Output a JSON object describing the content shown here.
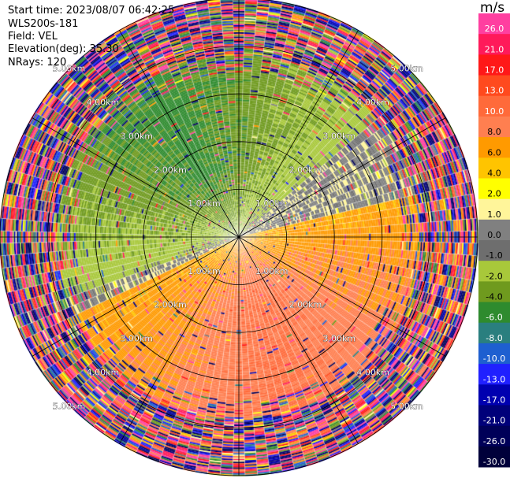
{
  "header": {
    "start_time": "Start time: 2023/08/07 06:42:25",
    "instrument": "WLS200s-181",
    "field": "Field: VEL",
    "elevation": "Elevation(deg): 35.30",
    "nrays": "NRays: 120"
  },
  "colorbar": {
    "unit": "m/s",
    "ticks": [
      "26.0",
      "21.0",
      "17.0",
      "13.0",
      "10.0",
      "8.0",
      "6.0",
      "4.0",
      "2.0",
      "1.0",
      "0.0",
      "-1.0",
      "-2.0",
      "-4.0",
      "-6.0",
      "-8.0",
      "-10.0",
      "-13.0",
      "-17.0",
      "-21.0",
      "-26.0",
      "-30.0"
    ],
    "colors": [
      "#ff3fa0",
      "#ff1a5a",
      "#ff1818",
      "#ff4a1e",
      "#ff6a3a",
      "#ff7f50",
      "#ff9a00",
      "#ffc400",
      "#ffff00",
      "#fff59a",
      "#808080",
      "#6e6e6e",
      "#a8c83a",
      "#6f9a1e",
      "#2e8b2e",
      "#2a7f7f",
      "#1e5fd0",
      "#2020ff",
      "#0000b0",
      "#00007a",
      "#000058",
      "#00003a"
    ]
  },
  "chart_data": {
    "type": "heatmap",
    "projection": "polar-ppi",
    "field": "VEL",
    "units": "m/s",
    "nrays": 120,
    "max_range_km": 5.0,
    "range_rings_km": [
      1.0,
      2.0,
      3.0,
      4.0,
      5.0
    ],
    "ring_labels": [
      "1.00km",
      "2.00km",
      "3.00km",
      "4.00km",
      "5.00km"
    ],
    "spokes_deg": [
      0,
      30,
      60,
      90,
      120,
      150,
      180,
      210,
      240,
      270,
      300,
      330
    ],
    "pattern": {
      "approaching_sector_center_deg": 330,
      "approaching_velocity": -6,
      "receding_sector_center_deg": 160,
      "receding_velocity": 6,
      "clean_range_km": 3.4,
      "noise_beyond_km": 3.8
    }
  }
}
